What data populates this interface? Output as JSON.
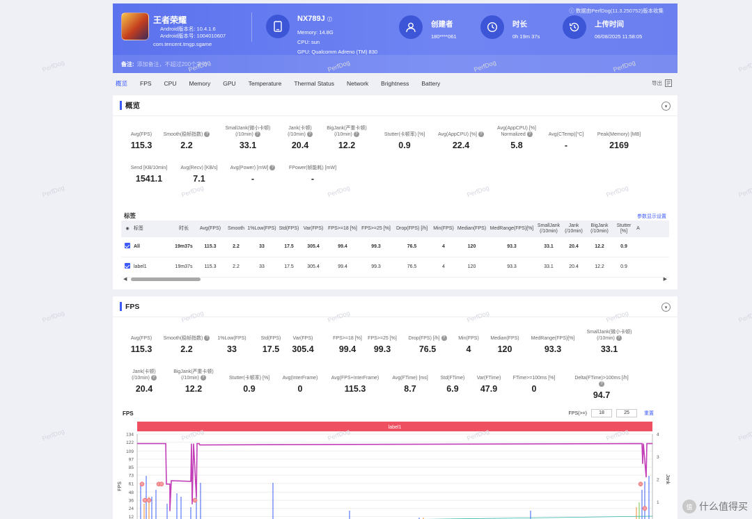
{
  "header": {
    "app_name": "王者荣耀",
    "version_name": "Android版本名: 10.4.1.6",
    "version_code": "Android版本号: 1004010607",
    "package": "com.tencent.tmgp.sgame",
    "device_name": "NX789J",
    "memory": "Memory: 14.8G",
    "cpu": "CPU: sun",
    "gpu": "GPU: Qualcomm Adreno (TM) 830",
    "creator_label": "创建者",
    "creator_value": "180****061",
    "duration_label": "时长",
    "duration_value": "0h 19m 37s",
    "upload_label": "上传时间",
    "upload_value": "06/08/2025 11:58:05",
    "data_source": "数据由PerfDog(11.3.250752)版本收集",
    "note_label": "备注:",
    "note_placeholder": "添加备注，不超过200个字符"
  },
  "tabs": [
    "概览",
    "FPS",
    "CPU",
    "Memory",
    "GPU",
    "Temperature",
    "Thermal Status",
    "Network",
    "Brightness",
    "Battery"
  ],
  "export_label": "导出",
  "overview": {
    "title": "概览",
    "row1": [
      {
        "label": "Avg(FPS)",
        "value": "115.3"
      },
      {
        "label": "Smooth(稳帧指数)",
        "value": "2.2",
        "help": true
      },
      {
        "label": "SmallJank(微小卡顿)\n(/10min)",
        "value": "33.1",
        "help": true
      },
      {
        "label": "Jank(卡顿)\n(/10min)",
        "value": "20.4",
        "help": true
      },
      {
        "label": "BigJank(严重卡顿)\n(/10min)",
        "value": "12.2",
        "help": true
      },
      {
        "label": "Stutter(卡顿率) [%]",
        "value": "0.9"
      },
      {
        "label": "Avg(AppCPU) [%]",
        "value": "22.4",
        "help": true
      },
      {
        "label": "Avg(AppCPU) [%]\nNormalized",
        "value": "5.8",
        "help": true
      },
      {
        "label": "Avg(CTemp)[°C]",
        "value": "-"
      },
      {
        "label": "Peak(Memory) [MB]",
        "value": "2169"
      }
    ],
    "row2": [
      {
        "label": "Send [KB/10min]",
        "value": "1541.1"
      },
      {
        "label": "Avg(Recv) [KB/s]",
        "value": "7.1"
      },
      {
        "label": "Avg(Power) [mW]",
        "value": "-",
        "help": true
      },
      {
        "label": "FPower(帧能耗) [mW]",
        "value": "-"
      }
    ],
    "labels_title": "标签",
    "labels_link": "参数显示设置",
    "table_headers": [
      "标签",
      "时长",
      "Avg(FPS)",
      "Smooth",
      "1%Low(FPS)",
      "Std(FPS)",
      "Var(FPS)",
      "FPS>=18 [%]",
      "FPS>=25 [%]",
      "Drop(FPS) [/h]",
      "Min(FPS)",
      "Median(FPS)",
      "MedRange(FPS)[%]",
      "SmallJank\n(/10min)",
      "Jank\n(/10min)",
      "BigJank\n(/10min)",
      "Stutter [%]",
      "A"
    ],
    "table_rows": [
      {
        "cells": [
          "All",
          "19m37s",
          "115.3",
          "2.2",
          "33",
          "17.5",
          "305.4",
          "99.4",
          "99.3",
          "76.5",
          "4",
          "120",
          "93.3",
          "33.1",
          "20.4",
          "12.2",
          "0.9",
          ""
        ],
        "bold": true
      },
      {
        "cells": [
          "label1",
          "19m37s",
          "115.3",
          "2.2",
          "33",
          "17.5",
          "305.4",
          "99.4",
          "99.3",
          "76.5",
          "4",
          "120",
          "93.3",
          "33.1",
          "20.4",
          "12.2",
          "0.9",
          ""
        ],
        "bold": false
      }
    ]
  },
  "fps": {
    "title": "FPS",
    "row1": [
      {
        "label": "Avg(FPS)",
        "value": "115.3"
      },
      {
        "label": "Smooth(稳帧指数)",
        "value": "2.2",
        "help": true
      },
      {
        "label": "1%Low(FPS)",
        "value": "33"
      },
      {
        "label": "Std(FPS)",
        "value": "17.5"
      },
      {
        "label": "Var(FPS)",
        "value": "305.4"
      },
      {
        "label": "FPS>=18 [%]",
        "value": "99.4"
      },
      {
        "label": "FPS>=25 [%]",
        "value": "99.3"
      },
      {
        "label": "Drop(FPS) [/h]",
        "value": "76.5",
        "help": true
      },
      {
        "label": "Min(FPS)",
        "value": "4"
      },
      {
        "label": "Median(FPS)",
        "value": "120"
      },
      {
        "label": "MedRange(FPS)[%]",
        "value": "93.3"
      },
      {
        "label": "SmallJank(微小卡顿)\n(/10min)",
        "value": "33.1",
        "help": true
      }
    ],
    "row2": [
      {
        "label": "Jank(卡顿)\n(/10min)",
        "value": "20.4",
        "help": true
      },
      {
        "label": "BigJank(严重卡顿)\n(/10min)",
        "value": "12.2",
        "help": true
      },
      {
        "label": "Stutter(卡顿率) [%]",
        "value": "0.9"
      },
      {
        "label": "Avg(InterFrame)",
        "value": "0"
      },
      {
        "label": "Avg(FPS+InterFrame)",
        "value": "115.3"
      },
      {
        "label": "Avg(FTime) [ms]",
        "value": "8.7"
      },
      {
        "label": "Std(FTime)",
        "value": "6.9"
      },
      {
        "label": "Var(FTime)",
        "value": "47.9"
      },
      {
        "label": "FTime>=100ms [%]",
        "value": "0"
      },
      {
        "label": "Delta(FTime)>100ms [/h]",
        "value": "94.7",
        "help": true
      }
    ],
    "chart_title": "FPS",
    "fps_ge_label": "FPS(>=)",
    "fps_threshold_1": "18",
    "fps_threshold_2": "25",
    "reset_label": "重置",
    "label_bar": "label1"
  },
  "chart_data": {
    "type": "line",
    "title": "FPS",
    "ylabel": "FPS",
    "y2label": "Jank",
    "yticks": [
      134,
      122,
      109,
      97,
      85,
      73,
      61,
      48,
      36,
      24,
      12
    ],
    "y2ticks": [
      4,
      3,
      2,
      1
    ],
    "ylim": [
      0,
      134
    ],
    "y2lim": [
      0,
      4
    ],
    "series": [
      {
        "name": "FPS",
        "color": "#c23fb8"
      },
      {
        "name": "Jank",
        "color": "#3a5cf0"
      }
    ]
  },
  "watermark": "PerfDog",
  "side_logo_text": "什么值得买",
  "colors": {
    "accent": "#3d5afe",
    "header": "#6378ef",
    "label_bar": "#ee5061"
  }
}
